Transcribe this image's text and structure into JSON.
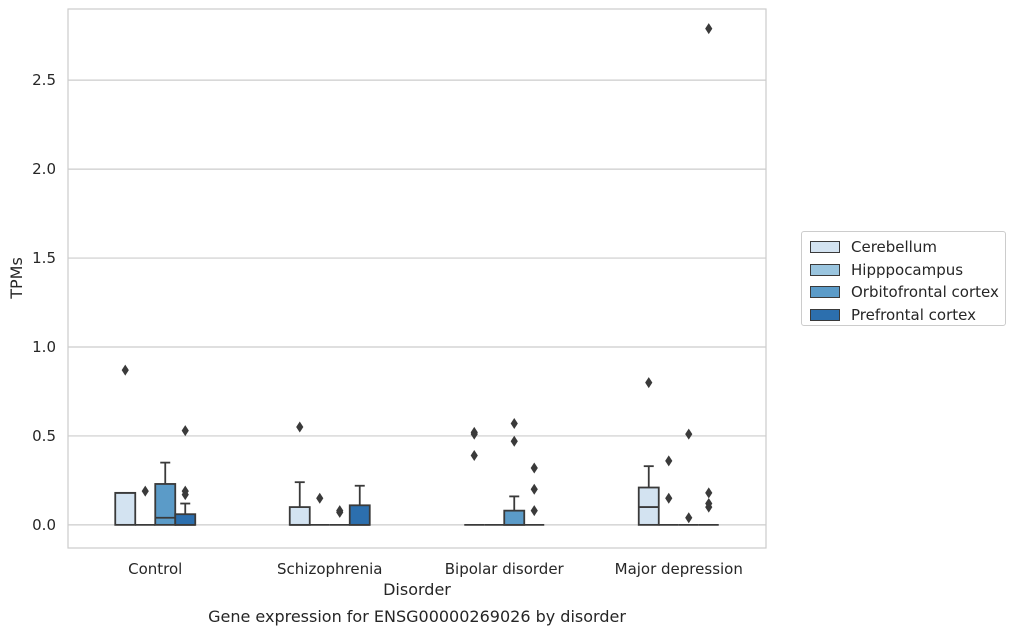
{
  "chart_data": {
    "type": "box",
    "xlabel": "Disorder",
    "ylabel": "TPMs",
    "caption": "Gene expression for ENSG00000269026 by disorder",
    "categories": [
      "Control",
      "Schizophrenia",
      "Bipolar disorder",
      "Major depression"
    ],
    "ylim": [
      -0.13,
      2.9
    ],
    "yticks": [
      "0.0",
      "0.5",
      "1.0",
      "1.5",
      "2.0",
      "2.5"
    ],
    "ytick_values": [
      0,
      0.5,
      1.0,
      1.5,
      2.0,
      2.5
    ],
    "grid": true,
    "legend_position": "right",
    "series": [
      {
        "name": "Cerebellum",
        "color": "#d3e3f1",
        "boxes": [
          {
            "q1": 0.0,
            "median": 0.18,
            "q3": 0.18,
            "whisker_low": 0.0,
            "whisker_high": 0.18,
            "outliers": [
              0.87
            ]
          },
          {
            "q1": 0.0,
            "median": 0.0,
            "q3": 0.1,
            "whisker_low": 0.0,
            "whisker_high": 0.24,
            "outliers": [
              0.55
            ]
          },
          {
            "q1": 0.0,
            "median": 0.0,
            "q3": 0.0,
            "whisker_low": 0.0,
            "whisker_high": 0.0,
            "outliers": [
              0.39,
              0.51,
              0.52
            ]
          },
          {
            "q1": 0.0,
            "median": 0.1,
            "q3": 0.21,
            "whisker_low": 0.0,
            "whisker_high": 0.33,
            "outliers": [
              0.8
            ]
          }
        ]
      },
      {
        "name": "Hipppocampus",
        "color": "#9ac5df",
        "boxes": [
          {
            "q1": 0.0,
            "median": 0.0,
            "q3": 0.0,
            "whisker_low": 0.0,
            "whisker_high": 0.0,
            "outliers": [
              0.19
            ]
          },
          {
            "q1": 0.0,
            "median": 0.0,
            "q3": 0.0,
            "whisker_low": 0.0,
            "whisker_high": 0.0,
            "outliers": [
              0.15
            ]
          },
          {
            "q1": 0.0,
            "median": 0.0,
            "q3": 0.0,
            "whisker_low": 0.0,
            "whisker_high": 0.0,
            "outliers": []
          },
          {
            "q1": 0.0,
            "median": 0.0,
            "q3": 0.0,
            "whisker_low": 0.0,
            "whisker_high": 0.0,
            "outliers": [
              0.15,
              0.36
            ]
          }
        ]
      },
      {
        "name": "Orbitofrontal cortex",
        "color": "#5b9bc8",
        "boxes": [
          {
            "q1": 0.0,
            "median": 0.04,
            "q3": 0.23,
            "whisker_low": 0.0,
            "whisker_high": 0.35,
            "outliers": []
          },
          {
            "q1": 0.0,
            "median": 0.0,
            "q3": 0.0,
            "whisker_low": 0.0,
            "whisker_high": 0.0,
            "outliers": [
              0.07,
              0.08
            ]
          },
          {
            "q1": 0.0,
            "median": 0.0,
            "q3": 0.08,
            "whisker_low": 0.0,
            "whisker_high": 0.16,
            "outliers": [
              0.47,
              0.57
            ]
          },
          {
            "q1": 0.0,
            "median": 0.0,
            "q3": 0.0,
            "whisker_low": 0.0,
            "whisker_high": 0.0,
            "outliers": [
              0.04,
              0.51
            ]
          }
        ]
      },
      {
        "name": "Prefrontal cortex",
        "color": "#2c6fae",
        "boxes": [
          {
            "q1": 0.0,
            "median": 0.0,
            "q3": 0.06,
            "whisker_low": 0.0,
            "whisker_high": 0.12,
            "outliers": [
              0.17,
              0.19,
              0.53
            ]
          },
          {
            "q1": 0.0,
            "median": 0.0,
            "q3": 0.11,
            "whisker_low": 0.0,
            "whisker_high": 0.22,
            "outliers": []
          },
          {
            "q1": 0.0,
            "median": 0.0,
            "q3": 0.0,
            "whisker_low": 0.0,
            "whisker_high": 0.0,
            "outliers": [
              0.08,
              0.2,
              0.32
            ]
          },
          {
            "q1": 0.0,
            "median": 0.0,
            "q3": 0.0,
            "whisker_low": 0.0,
            "whisker_high": 0.0,
            "outliers": [
              0.1,
              0.12,
              0.18,
              2.79
            ]
          }
        ]
      }
    ]
  }
}
